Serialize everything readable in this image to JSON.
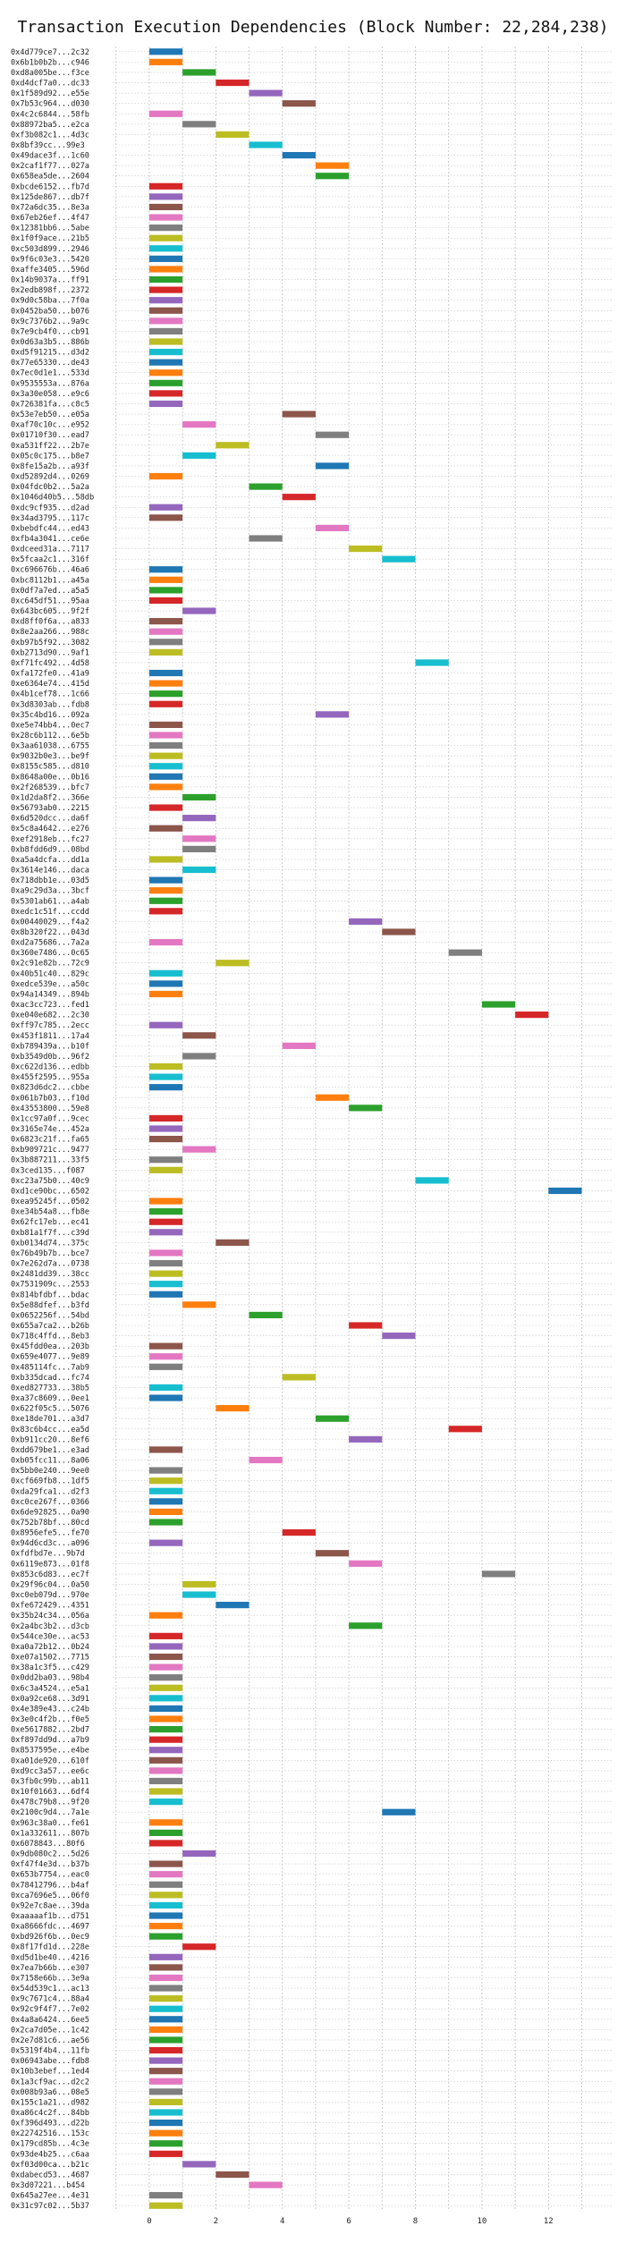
{
  "chart_data": {
    "type": "bar",
    "orientation": "horizontal",
    "title": "Transaction Execution Dependencies (Block Number: 22,284,238)",
    "xlim": [
      -1.1,
      13.9
    ],
    "xticks": [
      0,
      2,
      4,
      6,
      8,
      10,
      12
    ],
    "grid": true,
    "palette": [
      "#1f77b4",
      "#ff7f0e",
      "#2ca02c",
      "#d62728",
      "#9467bd",
      "#8c564b",
      "#e377c2",
      "#7f7f7f",
      "#bcbd22",
      "#17becf"
    ],
    "rows": [
      {
        "tx": "0x4d779ce7...2c32",
        "start": 0
      },
      {
        "tx": "0x6b1b0b2b...c946",
        "start": 0
      },
      {
        "tx": "0xd8a005be...f3ce",
        "start": 1
      },
      {
        "tx": "0xd4dcf7a0...dc33",
        "start": 2
      },
      {
        "tx": "0x1f589d92...e55e",
        "start": 3
      },
      {
        "tx": "0x7b53c964...d030",
        "start": 4
      },
      {
        "tx": "0x4c2c6844...58fb",
        "start": 0
      },
      {
        "tx": "0x88972ba5...e2ca",
        "start": 1
      },
      {
        "tx": "0xf3b082c1...4d3c",
        "start": 2
      },
      {
        "tx": "0x8bf39cc...99e3",
        "start": 3
      },
      {
        "tx": "0x49dace3f...1c60",
        "start": 4
      },
      {
        "tx": "0x2caf1f77...027a",
        "start": 5
      },
      {
        "tx": "0x658ea5de...2604",
        "start": 5
      },
      {
        "tx": "0xbcde6152...fb7d",
        "start": 0
      },
      {
        "tx": "0x125de867...db7f",
        "start": 0
      },
      {
        "tx": "0x72a6dc35...8e3a",
        "start": 0
      },
      {
        "tx": "0x67eb26ef...4f47",
        "start": 0
      },
      {
        "tx": "0x12381bb6...5abe",
        "start": 0
      },
      {
        "tx": "0x1f0f9ace...21b5",
        "start": 0
      },
      {
        "tx": "0xc503d899...2946",
        "start": 0
      },
      {
        "tx": "0x9f6c03e3...5420",
        "start": 0
      },
      {
        "tx": "0xaffe3405...596d",
        "start": 0
      },
      {
        "tx": "0x14b9037a...ff91",
        "start": 0
      },
      {
        "tx": "0x2edb898f...2372",
        "start": 0
      },
      {
        "tx": "0x9d0c58ba...7f0a",
        "start": 0
      },
      {
        "tx": "0x0452ba50...b076",
        "start": 0
      },
      {
        "tx": "0x9c7376b2...9a9c",
        "start": 0
      },
      {
        "tx": "0x7e9cb4f0...cb91",
        "start": 0
      },
      {
        "tx": "0x0d63a3b5...886b",
        "start": 0
      },
      {
        "tx": "0xd5f91215...d3d2",
        "start": 0
      },
      {
        "tx": "0x77e65330...de43",
        "start": 0
      },
      {
        "tx": "0x7ec0d1e1...533d",
        "start": 0
      },
      {
        "tx": "0x9535553a...876a",
        "start": 0
      },
      {
        "tx": "0x3a30e058...e9c6",
        "start": 0
      },
      {
        "tx": "0x726381fa...c8c5",
        "start": 0
      },
      {
        "tx": "0x53e7eb50...e05a",
        "start": 4
      },
      {
        "tx": "0xaf70c10c...e952",
        "start": 1
      },
      {
        "tx": "0x01710f30...ead7",
        "start": 5
      },
      {
        "tx": "0xa531ff22...2b7e",
        "start": 2
      },
      {
        "tx": "0x05c0c175...b8e7",
        "start": 1
      },
      {
        "tx": "0x8fe15a2b...a93f",
        "start": 5
      },
      {
        "tx": "0xd52892d4...0269",
        "start": 0
      },
      {
        "tx": "0x04fdc0b2...5a2a",
        "start": 3
      },
      {
        "tx": "0x1046d40b5...58db",
        "start": 4
      },
      {
        "tx": "0xdc9cf935...d2ad",
        "start": 0
      },
      {
        "tx": "0x34ad3795...117c",
        "start": 0
      },
      {
        "tx": "0xbebdfc44...ed43",
        "start": 5
      },
      {
        "tx": "0xfb4a3041...ce6e",
        "start": 3
      },
      {
        "tx": "0xdceed31a...7117",
        "start": 6
      },
      {
        "tx": "0x5fcaa2c1...316f",
        "start": 7
      },
      {
        "tx": "0xc696676b...46a6",
        "start": 0
      },
      {
        "tx": "0xbc8112b1...a45a",
        "start": 0
      },
      {
        "tx": "0x0df7a7ed...a5a5",
        "start": 0
      },
      {
        "tx": "0xc645df51...95aa",
        "start": 0
      },
      {
        "tx": "0x643bc605...9f2f",
        "start": 1
      },
      {
        "tx": "0xd8ff0f6a...a833",
        "start": 0
      },
      {
        "tx": "0x8e2aa266...988c",
        "start": 0
      },
      {
        "tx": "0xb97b5f92...3082",
        "start": 0
      },
      {
        "tx": "0xb2713d90...9af1",
        "start": 0
      },
      {
        "tx": "0xf71fc492...4d58",
        "start": 8
      },
      {
        "tx": "0xfa172fe0...41a9",
        "start": 0
      },
      {
        "tx": "0xe6364e74...415d",
        "start": 0
      },
      {
        "tx": "0x4b1cef78...1c66",
        "start": 0
      },
      {
        "tx": "0x3d8303ab...fdb8",
        "start": 0
      },
      {
        "tx": "0x35c4bd16...092a",
        "start": 5
      },
      {
        "tx": "0xe5e74bb4...0ec7",
        "start": 0
      },
      {
        "tx": "0x28c6b112...6e5b",
        "start": 0
      },
      {
        "tx": "0x3aa61038...6755",
        "start": 0
      },
      {
        "tx": "0x9032b0e3...be9f",
        "start": 0
      },
      {
        "tx": "0x8155c585...d810",
        "start": 0
      },
      {
        "tx": "0x8648a00e...0b16",
        "start": 0
      },
      {
        "tx": "0x2f268539...bfc7",
        "start": 0
      },
      {
        "tx": "0x1d2da8f2...366e",
        "start": 1
      },
      {
        "tx": "0x56793ab0...2215",
        "start": 0
      },
      {
        "tx": "0x6d520dcc...da6f",
        "start": 1
      },
      {
        "tx": "0x5c8a4642...e276",
        "start": 0
      },
      {
        "tx": "0xef2918eb...fc27",
        "start": 1
      },
      {
        "tx": "0xb8fdd6d9...08bd",
        "start": 1
      },
      {
        "tx": "0xa5a4dcfa...dd1a",
        "start": 0
      },
      {
        "tx": "0x3614e146...daca",
        "start": 1
      },
      {
        "tx": "0x718dbb1e...03d5",
        "start": 0
      },
      {
        "tx": "0xa9c29d3a...3bcf",
        "start": 0
      },
      {
        "tx": "0x5301ab61...a4ab",
        "start": 0
      },
      {
        "tx": "0xedc1c51f...ccdd",
        "start": 0
      },
      {
        "tx": "0x00440029...f4a2",
        "start": 6
      },
      {
        "tx": "0x8b320f22...043d",
        "start": 7
      },
      {
        "tx": "0xd2a75686...7a2a",
        "start": 0
      },
      {
        "tx": "0x360e7486...0c65",
        "start": 9
      },
      {
        "tx": "0x2c91e82b...72c9",
        "start": 2
      },
      {
        "tx": "0x40b51c40...829c",
        "start": 0
      },
      {
        "tx": "0xedce539e...a50c",
        "start": 0
      },
      {
        "tx": "0x94a14349...894b",
        "start": 0
      },
      {
        "tx": "0xac3cc723...fed1",
        "start": 10
      },
      {
        "tx": "0xe040e682...2c30",
        "start": 11
      },
      {
        "tx": "0xff97c785...2ecc",
        "start": 0
      },
      {
        "tx": "0x453f1811...17a4",
        "start": 1
      },
      {
        "tx": "0xb789439a...b10f",
        "start": 4
      },
      {
        "tx": "0xb3549d0b...96f2",
        "start": 1
      },
      {
        "tx": "0xc622d136...edbb",
        "start": 0
      },
      {
        "tx": "0x455f2595...955a",
        "start": 0
      },
      {
        "tx": "0x823d6dc2...cbbe",
        "start": 0
      },
      {
        "tx": "0x061b7b03...f10d",
        "start": 5
      },
      {
        "tx": "0x43553800...59e8",
        "start": 6
      },
      {
        "tx": "0x1cc97a0f...9cec",
        "start": 0
      },
      {
        "tx": "0x3165e74e...452a",
        "start": 0
      },
      {
        "tx": "0x6823c21f...fa65",
        "start": 0
      },
      {
        "tx": "0xb909721c...9477",
        "start": 1
      },
      {
        "tx": "0x3b887211...33f5",
        "start": 0
      },
      {
        "tx": "0x3ced135...f087",
        "start": 0
      },
      {
        "tx": "0xc23a75b0...40c9",
        "start": 8
      },
      {
        "tx": "0xd1ce90bc...6502",
        "start": 12
      },
      {
        "tx": "0xea95245f...0502",
        "start": 0
      },
      {
        "tx": "0xe34b54a8...fb8e",
        "start": 0
      },
      {
        "tx": "0x62fc17eb...ec41",
        "start": 0
      },
      {
        "tx": "0xb81a1f7f...c39d",
        "start": 0
      },
      {
        "tx": "0xb0134d74...375c",
        "start": 2
      },
      {
        "tx": "0x76b49b7b...bce7",
        "start": 0
      },
      {
        "tx": "0x7e262d7a...0738",
        "start": 0
      },
      {
        "tx": "0x2481dd39...38cc",
        "start": 0
      },
      {
        "tx": "0x7531909c...2553",
        "start": 0
      },
      {
        "tx": "0x814bfdbf...bdac",
        "start": 0
      },
      {
        "tx": "0x5e88dfef...b3fd",
        "start": 1
      },
      {
        "tx": "0x0652256f...54bd",
        "start": 3
      },
      {
        "tx": "0x655a7ca2...b26b",
        "start": 6
      },
      {
        "tx": "0x718c4ffd...8eb3",
        "start": 7
      },
      {
        "tx": "0x45fdd0ea...203b",
        "start": 0
      },
      {
        "tx": "0x659e4077...9e89",
        "start": 0
      },
      {
        "tx": "0x485114fc...7ab9",
        "start": 0
      },
      {
        "tx": "0xb335dcad...fc74",
        "start": 4
      },
      {
        "tx": "0xed827733...38b5",
        "start": 0
      },
      {
        "tx": "0xa37c8609...0ee1",
        "start": 0
      },
      {
        "tx": "0x622f05c5...5076",
        "start": 2
      },
      {
        "tx": "0xe18de701...a3d7",
        "start": 5
      },
      {
        "tx": "0x83c6b4cc...ea5d",
        "start": 9
      },
      {
        "tx": "0xb911cc20...8ef6",
        "start": 6
      },
      {
        "tx": "0xdd679be1...e3ad",
        "start": 0
      },
      {
        "tx": "0xb05fcc11...8a06",
        "start": 3
      },
      {
        "tx": "0x5bb0e240...9ee0",
        "start": 0
      },
      {
        "tx": "0xcf669fb8...1df5",
        "start": 0
      },
      {
        "tx": "0xda29fca1...d2f3",
        "start": 0
      },
      {
        "tx": "0xc0ce267f...0366",
        "start": 0
      },
      {
        "tx": "0x6de92825...0a90",
        "start": 0
      },
      {
        "tx": "0x752b78bf...80cd",
        "start": 0
      },
      {
        "tx": "0x8956efe5...fe70",
        "start": 4
      },
      {
        "tx": "0x94d6cd3c...a096",
        "start": 0
      },
      {
        "tx": "0xfdfbd7e...9b7d",
        "start": 5
      },
      {
        "tx": "0x6119e873...01f8",
        "start": 6
      },
      {
        "tx": "0x853c6d83...ec7f",
        "start": 10
      },
      {
        "tx": "0x29f96c04...0a50",
        "start": 1
      },
      {
        "tx": "0xc0eb079d...970e",
        "start": 1
      },
      {
        "tx": "0xfe672429...4351",
        "start": 2
      },
      {
        "tx": "0x35b24c34...056a",
        "start": 0
      },
      {
        "tx": "0x2a4bc3b2...d3cb",
        "start": 6
      },
      {
        "tx": "0x544ce30e...ac53",
        "start": 0
      },
      {
        "tx": "0xa0a72b12...0b24",
        "start": 0
      },
      {
        "tx": "0xe07a1502...7715",
        "start": 0
      },
      {
        "tx": "0x38a1c3f5...c429",
        "start": 0
      },
      {
        "tx": "0x0dd2ba03...98b4",
        "start": 0
      },
      {
        "tx": "0x6c3a4524...e5a1",
        "start": 0
      },
      {
        "tx": "0x0a92ce68...3d91",
        "start": 0
      },
      {
        "tx": "0x4e389e43...c24b",
        "start": 0
      },
      {
        "tx": "0x3e0c4f2b...f0e5",
        "start": 0
      },
      {
        "tx": "0xe5617882...2bd7",
        "start": 0
      },
      {
        "tx": "0xf897dd9d...a7b9",
        "start": 0
      },
      {
        "tx": "0x8537595e...e4be",
        "start": 0
      },
      {
        "tx": "0xa01de920...610f",
        "start": 0
      },
      {
        "tx": "0xd9cc3a57...ee6c",
        "start": 0
      },
      {
        "tx": "0x3fb0c99b...ab11",
        "start": 0
      },
      {
        "tx": "0x10f01663...6df4",
        "start": 0
      },
      {
        "tx": "0x478c79b8...9f20",
        "start": 0
      },
      {
        "tx": "0x2100c9d4...7a1e",
        "start": 7
      },
      {
        "tx": "0x963c38a0...fe61",
        "start": 0
      },
      {
        "tx": "0x1a332611...807b",
        "start": 0
      },
      {
        "tx": "0x6078843...80f6",
        "start": 0
      },
      {
        "tx": "0x9db080c2...5d26",
        "start": 1
      },
      {
        "tx": "0xf47f4e3d...b37b",
        "start": 0
      },
      {
        "tx": "0x653b7754...eac0",
        "start": 0
      },
      {
        "tx": "0x78412796...b4af",
        "start": 0
      },
      {
        "tx": "0xca7696e5...06f0",
        "start": 0
      },
      {
        "tx": "0x92e7c8ae...39da",
        "start": 0
      },
      {
        "tx": "0xaaaaaf1b...d751",
        "start": 0
      },
      {
        "tx": "0xa8666fdc...4697",
        "start": 0
      },
      {
        "tx": "0xbd926f6b...0ec9",
        "start": 0
      },
      {
        "tx": "0x8f17fd1d...228e",
        "start": 1
      },
      {
        "tx": "0xd5d1be40...4216",
        "start": 0
      },
      {
        "tx": "0x7ea7b66b...e307",
        "start": 0
      },
      {
        "tx": "0x7158e66b...3e9a",
        "start": 0
      },
      {
        "tx": "0x54d539c1...ac13",
        "start": 0
      },
      {
        "tx": "0x9c7671c4...88a4",
        "start": 0
      },
      {
        "tx": "0x92c9f4f7...7e02",
        "start": 0
      },
      {
        "tx": "0x4a8a6424...6ee5",
        "start": 0
      },
      {
        "tx": "0x2ca7d05e...1c42",
        "start": 0
      },
      {
        "tx": "0x2e7d81c6...ae56",
        "start": 0
      },
      {
        "tx": "0x5319f4b4...11fb",
        "start": 0
      },
      {
        "tx": "0x06943abe...fdb8",
        "start": 0
      },
      {
        "tx": "0x10b3ebef...1ed4",
        "start": 0
      },
      {
        "tx": "0x1a3cf9ac...d2c2",
        "start": 0
      },
      {
        "tx": "0x008b93a6...08e5",
        "start": 0
      },
      {
        "tx": "0x155c1a21...d982",
        "start": 0
      },
      {
        "tx": "0xa86c4c2f...84bb",
        "start": 0
      },
      {
        "tx": "0xf396d493...d22b",
        "start": 0
      },
      {
        "tx": "0x22742516...153c",
        "start": 0
      },
      {
        "tx": "0x179cd85b...4c3e",
        "start": 0
      },
      {
        "tx": "0x93de4b25...c6aa",
        "start": 0
      },
      {
        "tx": "0xf03d00ca...b21c",
        "start": 1
      },
      {
        "tx": "0xdabecd53...4687",
        "start": 2
      },
      {
        "tx": "0x3d07221...b454",
        "start": 3
      },
      {
        "tx": "0x645a27ee...4e31",
        "start": 0
      },
      {
        "tx": "0x31c97c02...5b37",
        "start": 0
      }
    ]
  }
}
